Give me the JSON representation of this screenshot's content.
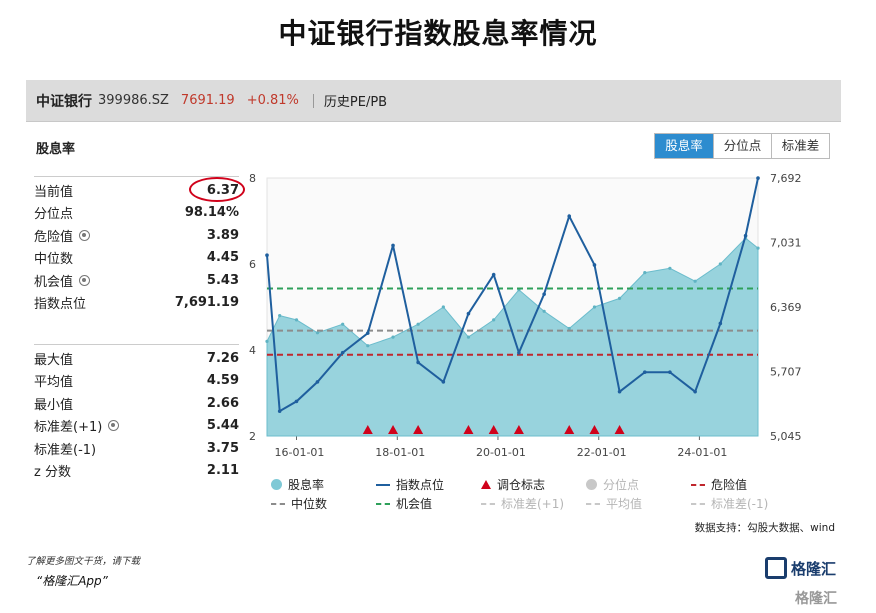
{
  "title": "中证银行指数股息率情况",
  "header": {
    "name": "中证银行",
    "code": "399986.SZ",
    "price": "7691.19",
    "change": "+0.81%",
    "hist_label": "历史PE/PB"
  },
  "section_title": "股息率",
  "tabs": [
    "股息率",
    "分位点",
    "标准差"
  ],
  "stats_top": [
    {
      "label": "当前值",
      "value": "6.37",
      "gear": false
    },
    {
      "label": "分位点",
      "value": "98.14%",
      "gear": false
    },
    {
      "label": "危险值",
      "value": "3.89",
      "gear": true
    },
    {
      "label": "中位数",
      "value": "4.45",
      "gear": false
    },
    {
      "label": "机会值",
      "value": "5.43",
      "gear": true
    },
    {
      "label": "指数点位",
      "value": "7,691.19",
      "gear": false
    }
  ],
  "stats_bottom": [
    {
      "label": "最大值",
      "value": "7.26",
      "gear": false
    },
    {
      "label": "平均值",
      "value": "4.59",
      "gear": false
    },
    {
      "label": "最小值",
      "value": "2.66",
      "gear": false
    },
    {
      "label": "标准差(+1)",
      "value": "5.44",
      "gear": true
    },
    {
      "label": "标准差(-1)",
      "value": "3.75",
      "gear": false
    },
    {
      "label": "z 分数",
      "value": "2.11",
      "gear": false
    }
  ],
  "legend": {
    "row1": [
      "股息率",
      "指数点位",
      "调仓标志",
      "分位点",
      "危险值"
    ],
    "row2": [
      "中位数",
      "机会值",
      "标准差(+1)",
      "平均值",
      "标准差(-1)"
    ]
  },
  "source": "数据支持：勾股大数据、wind",
  "footer": {
    "line1": "了解更多图文干货，请下载",
    "line2": "“格隆汇App”",
    "logo": "格隆汇"
  },
  "colors": {
    "area": "#7fc9d6",
    "index_line": "#1f5f9e",
    "danger": "#c0262d",
    "median": "#8c8c8c",
    "opportunity": "#2ea05a",
    "marker": "#d0021b",
    "accent_tab": "#2d8ccf"
  },
  "chart_data": {
    "type": "area",
    "x_ticks": [
      "16-01-01",
      "18-01-01",
      "20-01-01",
      "22-01-01",
      "24-01-01"
    ],
    "y_left_ticks": [
      "2",
      "4",
      "6",
      "8"
    ],
    "y_right_ticks": [
      "5,045",
      "5,707",
      "6,369",
      "7,031",
      "7,692"
    ],
    "ylim_left": [
      2,
      8
    ],
    "ylim_right": [
      5045,
      7692
    ],
    "reference_lines": {
      "danger": 3.89,
      "median": 4.45,
      "opportunity": 5.43
    },
    "rebalance_markers": [
      "2017-06",
      "2017-12",
      "2018-06",
      "2019-06",
      "2019-12",
      "2020-06",
      "2021-06",
      "2021-12",
      "2022-06"
    ],
    "series": [
      {
        "name": "股息率",
        "x": [
          "2015-06",
          "2015-09",
          "2016-01",
          "2016-06",
          "2016-12",
          "2017-06",
          "2017-12",
          "2018-06",
          "2018-12",
          "2019-06",
          "2019-12",
          "2020-06",
          "2020-12",
          "2021-06",
          "2021-12",
          "2022-06",
          "2022-12",
          "2023-06",
          "2023-12",
          "2024-06",
          "2024-12",
          "2025-03"
        ],
        "values": [
          4.2,
          4.8,
          4.7,
          4.4,
          4.6,
          4.1,
          4.3,
          4.6,
          5.0,
          4.3,
          4.7,
          5.4,
          4.9,
          4.5,
          5.0,
          5.2,
          5.8,
          5.9,
          5.6,
          6.0,
          6.6,
          6.37
        ]
      },
      {
        "name": "指数点位",
        "x": [
          "2015-06",
          "2015-09",
          "2016-01",
          "2016-06",
          "2016-12",
          "2017-06",
          "2017-12",
          "2018-06",
          "2018-12",
          "2019-06",
          "2019-12",
          "2020-06",
          "2020-12",
          "2021-06",
          "2021-12",
          "2022-06",
          "2022-12",
          "2023-06",
          "2023-12",
          "2024-06",
          "2024-12",
          "2025-03"
        ],
        "values": [
          6900,
          5300,
          5400,
          5600,
          5900,
          6100,
          7000,
          5800,
          5600,
          6300,
          6700,
          5900,
          6500,
          7300,
          6800,
          5500,
          5700,
          5700,
          5500,
          6200,
          7100,
          7691
        ]
      }
    ]
  }
}
